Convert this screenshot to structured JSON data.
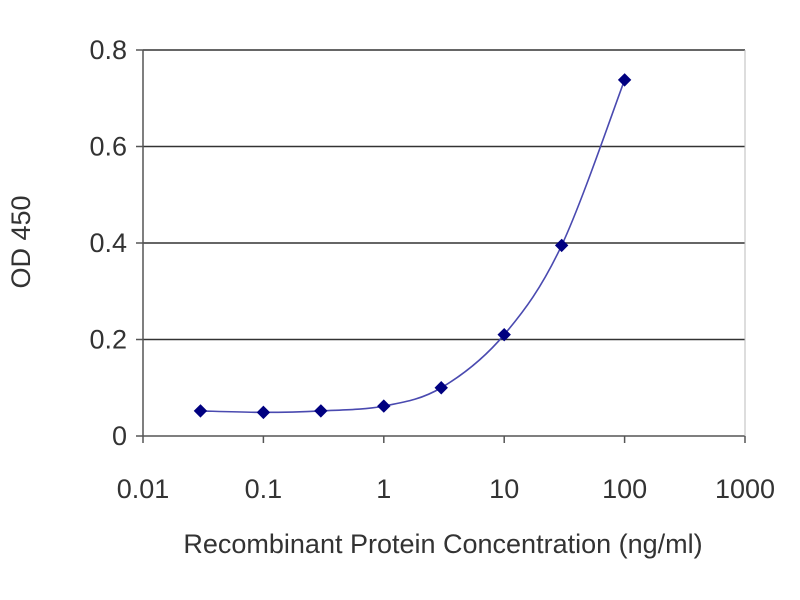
{
  "chart_data": {
    "type": "line",
    "title": "",
    "xlabel": "Recombinant Protein Concentration (ng/ml)",
    "ylabel": "OD 450",
    "x_scale": "log",
    "xlim": [
      0.01,
      1000
    ],
    "ylim": [
      0,
      0.8
    ],
    "x_ticks": [
      {
        "value": 0.01,
        "label": "0.01"
      },
      {
        "value": 0.1,
        "label": "0.1"
      },
      {
        "value": 1,
        "label": "1"
      },
      {
        "value": 10,
        "label": "10"
      },
      {
        "value": 100,
        "label": "100"
      },
      {
        "value": 1000,
        "label": "1000"
      }
    ],
    "y_ticks": [
      {
        "value": 0,
        "label": "0"
      },
      {
        "value": 0.2,
        "label": "0.2"
      },
      {
        "value": 0.4,
        "label": "0.4"
      },
      {
        "value": 0.6,
        "label": "0.6"
      },
      {
        "value": 0.8,
        "label": "0.8"
      }
    ],
    "grid": "horizontal",
    "legend": "none",
    "series": [
      {
        "color": "#000080",
        "marker": "diamond",
        "points": [
          {
            "x": 0.03,
            "y": 0.052
          },
          {
            "x": 0.1,
            "y": 0.049
          },
          {
            "x": 0.3,
            "y": 0.052
          },
          {
            "x": 1,
            "y": 0.062
          },
          {
            "x": 3,
            "y": 0.1
          },
          {
            "x": 10,
            "y": 0.21
          },
          {
            "x": 30,
            "y": 0.395
          },
          {
            "x": 100,
            "y": 0.738
          }
        ]
      }
    ],
    "colors": {
      "line": "#4a4ab0",
      "marker": "#000080",
      "gridline": "#333333",
      "axis": "#555555",
      "text": "#333333"
    }
  }
}
